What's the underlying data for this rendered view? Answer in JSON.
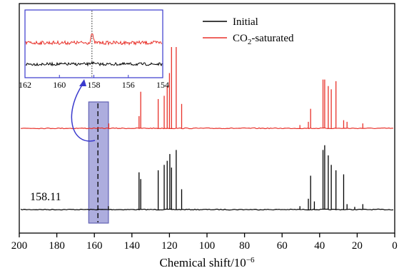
{
  "chart_data": {
    "type": "line",
    "xlabel_main": "Chemical shift/10",
    "xlabel_sup": "−6",
    "xlim": [
      200,
      0
    ],
    "x_ticks": [
      200,
      180,
      160,
      140,
      120,
      100,
      80,
      60,
      40,
      20,
      0
    ],
    "grid": false,
    "legend_position": "top-right",
    "series": [
      {
        "name": "Initial",
        "color": "#000000",
        "peaks": [
          {
            "x": 158.11,
            "h": 0.02
          },
          {
            "x": 152.5,
            "h": 0.05
          },
          {
            "x": 136.2,
            "h": 0.55
          },
          {
            "x": 135.3,
            "h": 0.45
          },
          {
            "x": 126.0,
            "h": 0.58
          },
          {
            "x": 122.8,
            "h": 0.66
          },
          {
            "x": 121.2,
            "h": 0.72
          },
          {
            "x": 119.8,
            "h": 0.82
          },
          {
            "x": 118.9,
            "h": 0.62
          },
          {
            "x": 116.4,
            "h": 0.88
          },
          {
            "x": 113.5,
            "h": 0.3
          },
          {
            "x": 50.5,
            "h": 0.05
          },
          {
            "x": 46.0,
            "h": 0.16
          },
          {
            "x": 44.8,
            "h": 0.5
          },
          {
            "x": 42.8,
            "h": 0.12
          },
          {
            "x": 38.2,
            "h": 0.88
          },
          {
            "x": 37.3,
            "h": 0.95
          },
          {
            "x": 35.4,
            "h": 0.8
          },
          {
            "x": 33.8,
            "h": 0.66
          },
          {
            "x": 31.3,
            "h": 0.58
          },
          {
            "x": 27.2,
            "h": 0.52
          },
          {
            "x": 25.4,
            "h": 0.08
          },
          {
            "x": 21.3,
            "h": 0.04
          },
          {
            "x": 17.0,
            "h": 0.08
          }
        ]
      },
      {
        "name": "CO₂-saturated",
        "name_main": "CO",
        "name_sub": "2",
        "name_rest": "-saturated",
        "color": "#e8312a",
        "peaks": [
          {
            "x": 152.3,
            "h": 0.06
          },
          {
            "x": 136.2,
            "h": 0.15
          },
          {
            "x": 135.3,
            "h": 0.45
          },
          {
            "x": 126.0,
            "h": 0.36
          },
          {
            "x": 122.8,
            "h": 0.4
          },
          {
            "x": 121.2,
            "h": 0.52
          },
          {
            "x": 120.0,
            "h": 0.68
          },
          {
            "x": 118.9,
            "h": 1.0
          },
          {
            "x": 116.4,
            "h": 1.0
          },
          {
            "x": 113.5,
            "h": 0.3
          },
          {
            "x": 50.5,
            "h": 0.04
          },
          {
            "x": 46.0,
            "h": 0.08
          },
          {
            "x": 44.8,
            "h": 0.24
          },
          {
            "x": 38.2,
            "h": 0.6
          },
          {
            "x": 37.3,
            "h": 0.6
          },
          {
            "x": 35.4,
            "h": 0.52
          },
          {
            "x": 33.8,
            "h": 0.48
          },
          {
            "x": 31.3,
            "h": 0.58
          },
          {
            "x": 27.2,
            "h": 0.1
          },
          {
            "x": 25.4,
            "h": 0.08
          },
          {
            "x": 17.0,
            "h": 0.06
          }
        ]
      }
    ],
    "annotations": [
      {
        "text": "158.11",
        "x": 158.11
      }
    ],
    "highlight_region": {
      "x_from": 163,
      "x_to": 152.5,
      "dashed_line_x": 158.11
    },
    "inset": {
      "xlim": [
        162,
        154
      ],
      "x_ticks": [
        162,
        160,
        158,
        156,
        154
      ],
      "peak_x": 158.11,
      "series": [
        "CO₂-saturated",
        "Initial"
      ]
    }
  }
}
